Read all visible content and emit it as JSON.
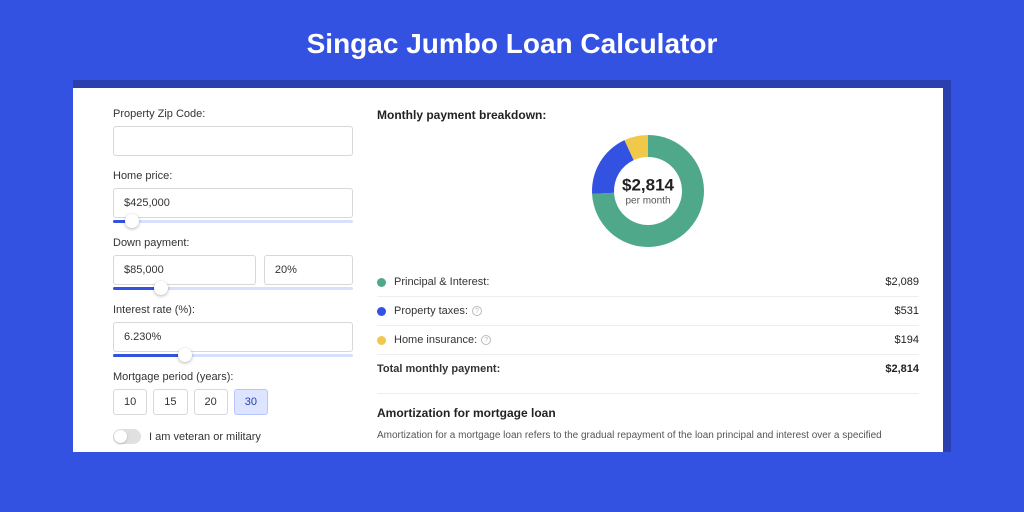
{
  "page": {
    "title": "Singac Jumbo Loan Calculator",
    "bg_color": "#3452e1",
    "card_shadow_color": "#2a3fb0"
  },
  "form": {
    "zip": {
      "label": "Property Zip Code:",
      "value": ""
    },
    "home_price": {
      "label": "Home price:",
      "value": "$425,000",
      "slider_percent": 8
    },
    "down_payment": {
      "label": "Down payment:",
      "amount": "$85,000",
      "percent": "20%",
      "slider_percent": 20
    },
    "interest": {
      "label": "Interest rate (%):",
      "value": "6.230%",
      "slider_percent": 30
    },
    "period": {
      "label": "Mortgage period (years):",
      "options": [
        "10",
        "15",
        "20",
        "30"
      ],
      "selected": "30"
    },
    "veteran": {
      "label": "I am veteran or military",
      "checked": false
    }
  },
  "breakdown": {
    "title": "Monthly payment breakdown:",
    "donut": {
      "amount": "$2,814",
      "label": "per month",
      "slices": [
        {
          "key": "principal",
          "value": 2089,
          "percent": 74.2,
          "color": "#4fa88a"
        },
        {
          "key": "taxes",
          "value": 531,
          "percent": 18.9,
          "color": "#3452e1"
        },
        {
          "key": "insurance",
          "value": 194,
          "percent": 6.9,
          "color": "#f0c94a"
        }
      ],
      "size": 118,
      "thickness": 22
    },
    "items": [
      {
        "label": "Principal & Interest:",
        "value": "$2,089",
        "color": "#4fa88a",
        "has_info": false
      },
      {
        "label": "Property taxes:",
        "value": "$531",
        "color": "#3452e1",
        "has_info": true
      },
      {
        "label": "Home insurance:",
        "value": "$194",
        "color": "#f0c94a",
        "has_info": true
      }
    ],
    "total": {
      "label": "Total monthly payment:",
      "value": "$2,814"
    }
  },
  "amortization": {
    "title": "Amortization for mortgage loan",
    "text": "Amortization for a mortgage loan refers to the gradual repayment of the loan principal and interest over a specified"
  }
}
